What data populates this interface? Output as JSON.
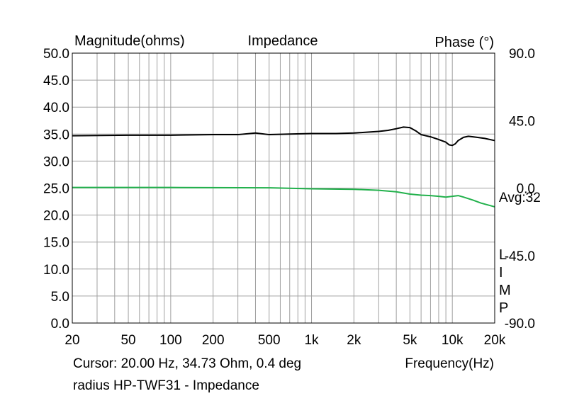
{
  "labels": {
    "left_axis_title": "Magnitude(ohms)",
    "center_title": "Impedance",
    "right_axis_title": "Phase (°)",
    "x_axis_title": "Frequency(Hz)",
    "cursor_readout": "Cursor: 20.00 Hz, 34.73 Ohm, 0.4 deg",
    "caption": "radius HP-TWF31 - Impedance",
    "avg_label": "Avg:32",
    "limp_letters": [
      "L",
      "I",
      "M",
      "P"
    ]
  },
  "colors": {
    "magnitude": "#000000",
    "phase": "#22b14c",
    "grid": "#a0a0a0",
    "frame": "#000000"
  },
  "chart_data": {
    "type": "line",
    "title": "Impedance",
    "xlabel": "Frequency(Hz)",
    "ylabel": "Magnitude(ohms)",
    "y2label": "Phase (°)",
    "xscale": "log",
    "xlim": [
      20,
      20000
    ],
    "ylim": [
      0,
      50
    ],
    "y2lim": [
      -90,
      90
    ],
    "grid": true,
    "x_ticks": [
      {
        "value": 20,
        "label": "20"
      },
      {
        "value": 50,
        "label": "50"
      },
      {
        "value": 100,
        "label": "100"
      },
      {
        "value": 200,
        "label": "200"
      },
      {
        "value": 500,
        "label": "500"
      },
      {
        "value": 1000,
        "label": "1k"
      },
      {
        "value": 2000,
        "label": "2k"
      },
      {
        "value": 5000,
        "label": "5k"
      },
      {
        "value": 10000,
        "label": "10k"
      },
      {
        "value": 20000,
        "label": "20k"
      }
    ],
    "y_ticks": [
      {
        "value": 0,
        "label": "0.0"
      },
      {
        "value": 5,
        "label": "5.0"
      },
      {
        "value": 10,
        "label": "10.0"
      },
      {
        "value": 15,
        "label": "15.0"
      },
      {
        "value": 20,
        "label": "20.0"
      },
      {
        "value": 25,
        "label": "25.0"
      },
      {
        "value": 30,
        "label": "30.0"
      },
      {
        "value": 35,
        "label": "35.0"
      },
      {
        "value": 40,
        "label": "40.0"
      },
      {
        "value": 45,
        "label": "45.0"
      },
      {
        "value": 50,
        "label": "50.0"
      }
    ],
    "y2_ticks": [
      {
        "value": 90,
        "label": "90.0"
      },
      {
        "value": 45,
        "label": "45.0"
      },
      {
        "value": 0,
        "label": "0.0"
      },
      {
        "value": -45,
        "label": "-45.0"
      },
      {
        "value": -90,
        "label": "-90.0"
      }
    ],
    "series": [
      {
        "axis": "left",
        "x": [
          20,
          50,
          100,
          200,
          300,
          400,
          500,
          700,
          1000,
          1500,
          2000,
          3000,
          3500,
          4000,
          4500,
          5000,
          5500,
          6000,
          7000,
          8000,
          9000,
          9500,
          10000,
          10500,
          11000,
          12000,
          13000,
          14000,
          15000,
          17000,
          20000
        ],
        "values": [
          34.7,
          34.8,
          34.8,
          34.9,
          34.9,
          35.2,
          34.9,
          35.0,
          35.1,
          35.1,
          35.2,
          35.5,
          35.7,
          36.0,
          36.3,
          36.2,
          35.6,
          34.9,
          34.5,
          34.0,
          33.5,
          33.0,
          32.9,
          33.2,
          33.8,
          34.4,
          34.6,
          34.5,
          34.4,
          34.2,
          33.8
        ]
      },
      {
        "axis": "right",
        "x": [
          20,
          100,
          500,
          1000,
          2000,
          3000,
          4000,
          5000,
          6000,
          7000,
          8000,
          9000,
          10000,
          11000,
          12000,
          14000,
          16000,
          20000
        ],
        "values": [
          0.4,
          0.4,
          0.2,
          -0.5,
          -0.8,
          -1.5,
          -2.5,
          -4.0,
          -4.7,
          -5.0,
          -5.5,
          -6.0,
          -5.5,
          -5.0,
          -6.0,
          -8.0,
          -10.0,
          -12.5
        ]
      }
    ]
  }
}
